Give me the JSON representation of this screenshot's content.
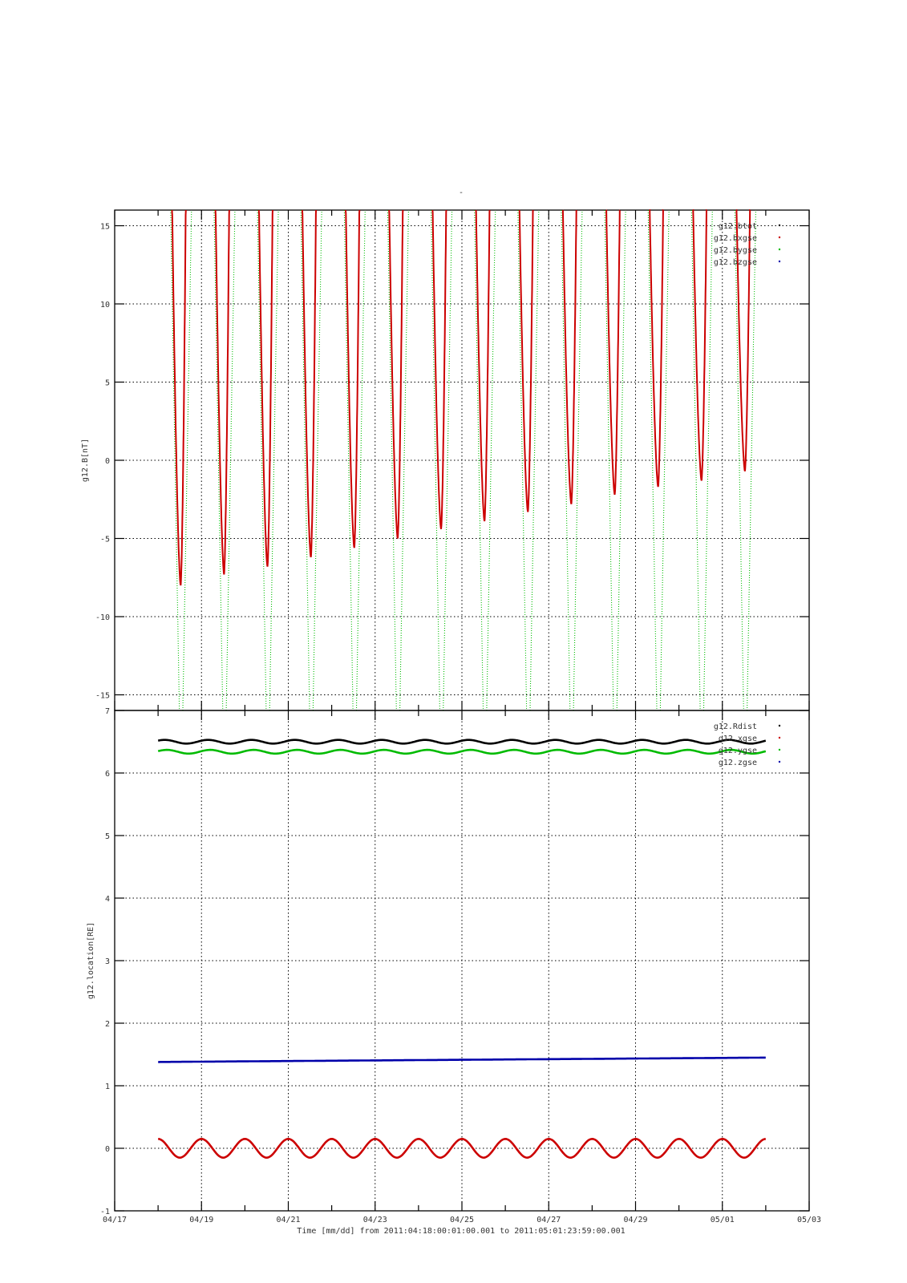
{
  "page_title": "-",
  "chart_data": [
    {
      "type": "scatter",
      "ylabel": "g12.B[nT]",
      "ylim": [
        -16,
        16
      ],
      "yticks": [
        -15,
        -10,
        -5,
        0,
        5,
        10,
        15
      ],
      "xlim": [
        "2011-04-17",
        "2011-05-03"
      ],
      "grid": true,
      "legend_position": "top-right",
      "series": [
        {
          "name": "g12.btot",
          "color": "#000000",
          "values": []
        },
        {
          "name": "g12.bxgse",
          "color": "#cc0000",
          "kind": "daily-dip",
          "day_starts": [
            "04/18",
            "04/19",
            "04/20",
            "04/21",
            "04/22",
            "04/23",
            "04/24",
            "04/25",
            "04/26",
            "04/27",
            "04/28",
            "04/29",
            "04/30",
            "05/01"
          ],
          "minima": [
            -8.0,
            -7.3,
            -6.8,
            -6.2,
            -5.6,
            -5.0,
            -4.4,
            -3.9,
            -3.3,
            -2.8,
            -2.2,
            -1.7,
            -1.3,
            -0.7
          ]
        },
        {
          "name": "g12.bygse",
          "color": "#00bb00",
          "kind": "steep-sweep",
          "values": []
        },
        {
          "name": "g12.bzgse",
          "color": "#0000aa",
          "values": []
        }
      ]
    },
    {
      "type": "scatter",
      "ylabel": "g12.location[RE]",
      "ylim": [
        -1,
        7
      ],
      "yticks": [
        -1,
        0,
        1,
        2,
        3,
        4,
        5,
        6,
        7
      ],
      "xlabel": "Time [mm/dd]  from 2011:04:18:00:01:00.001  to  2011:05:01:23:59:00.001",
      "xlim": [
        "2011-04-17",
        "2011-05-03"
      ],
      "xticks": [
        "04/17",
        "04/19",
        "04/21",
        "04/23",
        "04/25",
        "04/27",
        "04/29",
        "05/01",
        "05/03"
      ],
      "grid": true,
      "legend_position": "top-right",
      "series": [
        {
          "name": "g12.Rdist",
          "color": "#000000",
          "mean": 6.5,
          "amplitude": 0.03
        },
        {
          "name": "g12.xgse",
          "color": "#cc0000",
          "mean": 0.0,
          "amplitude": 0.15
        },
        {
          "name": "g12.ygse",
          "color": "#00bb00",
          "mean": 6.34,
          "amplitude": 0.03
        },
        {
          "name": "g12.zgse",
          "color": "#0000aa",
          "start": 1.38,
          "end": 1.45
        }
      ]
    }
  ]
}
